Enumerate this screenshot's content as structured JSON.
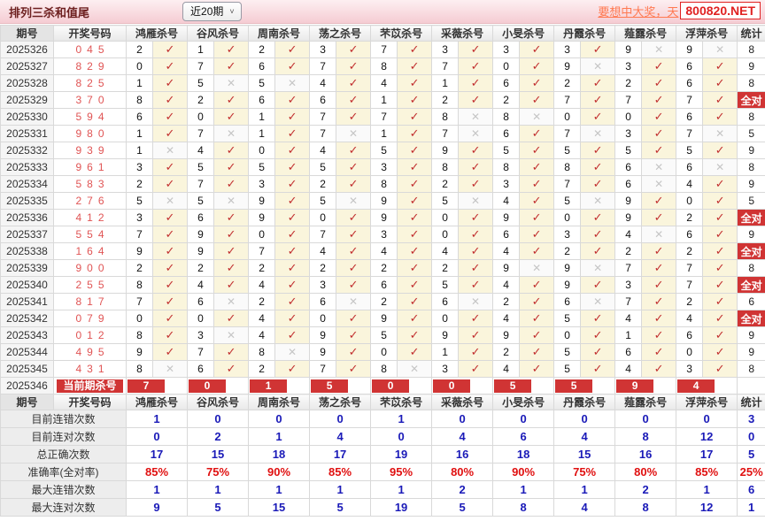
{
  "title": "排列三杀和值尾",
  "range_select": {
    "value": "近20期",
    "arrow": "˅"
  },
  "promo": {
    "link_text": "要想中大奖，天",
    "site": "800820.NET"
  },
  "columns": {
    "period": "期号",
    "numbers": "开奖号码",
    "stat": "统计"
  },
  "experts": [
    "鸿雁杀号",
    "谷风杀号",
    "周南杀号",
    "荡之杀号",
    "芣苡杀号",
    "采薇杀号",
    "小旻杀号",
    "丹霞杀号",
    "薤露杀号",
    "浮萍杀号"
  ],
  "icons": {
    "check": "✓",
    "cross": "✕"
  },
  "badges": {
    "all_correct": "全对",
    "current_label": "当前期杀号"
  },
  "colors": {
    "accent_red": "#d03434",
    "check": "#c23030",
    "cross": "#c6c6c6",
    "value_blue": "#1a1ab8",
    "value_red": "#e01010",
    "draw_red": "#e05454"
  },
  "rows": [
    {
      "period": "2025326",
      "numbers": "045",
      "kills": [
        [
          "2",
          1
        ],
        [
          "1",
          1
        ],
        [
          "2",
          1
        ],
        [
          "3",
          1
        ],
        [
          "7",
          1
        ],
        [
          "3",
          1
        ],
        [
          "3",
          1
        ],
        [
          "3",
          1
        ],
        [
          "9",
          0
        ],
        [
          "9",
          0
        ]
      ],
      "stat": "8",
      "all_correct": false
    },
    {
      "period": "2025327",
      "numbers": "829",
      "kills": [
        [
          "0",
          1
        ],
        [
          "7",
          1
        ],
        [
          "6",
          1
        ],
        [
          "7",
          1
        ],
        [
          "8",
          1
        ],
        [
          "7",
          1
        ],
        [
          "0",
          1
        ],
        [
          "9",
          0
        ],
        [
          "3",
          1
        ],
        [
          "6",
          1
        ]
      ],
      "stat": "9",
      "all_correct": false
    },
    {
      "period": "2025328",
      "numbers": "825",
      "kills": [
        [
          "1",
          1
        ],
        [
          "5",
          0
        ],
        [
          "5",
          0
        ],
        [
          "4",
          1
        ],
        [
          "4",
          1
        ],
        [
          "1",
          1
        ],
        [
          "6",
          1
        ],
        [
          "2",
          1
        ],
        [
          "2",
          1
        ],
        [
          "6",
          1
        ]
      ],
      "stat": "8",
      "all_correct": false
    },
    {
      "period": "2025329",
      "numbers": "370",
      "kills": [
        [
          "8",
          1
        ],
        [
          "2",
          1
        ],
        [
          "6",
          1
        ],
        [
          "6",
          1
        ],
        [
          "1",
          1
        ],
        [
          "2",
          1
        ],
        [
          "2",
          1
        ],
        [
          "7",
          1
        ],
        [
          "7",
          1
        ],
        [
          "7",
          1
        ]
      ],
      "stat": "",
      "all_correct": true
    },
    {
      "period": "2025330",
      "numbers": "594",
      "kills": [
        [
          "6",
          1
        ],
        [
          "0",
          1
        ],
        [
          "1",
          1
        ],
        [
          "7",
          1
        ],
        [
          "7",
          1
        ],
        [
          "8",
          0
        ],
        [
          "8",
          0
        ],
        [
          "0",
          1
        ],
        [
          "0",
          1
        ],
        [
          "6",
          1
        ]
      ],
      "stat": "8",
      "all_correct": false
    },
    {
      "period": "2025331",
      "numbers": "980",
      "kills": [
        [
          "1",
          1
        ],
        [
          "7",
          0
        ],
        [
          "1",
          1
        ],
        [
          "7",
          0
        ],
        [
          "1",
          1
        ],
        [
          "7",
          0
        ],
        [
          "6",
          1
        ],
        [
          "7",
          0
        ],
        [
          "3",
          1
        ],
        [
          "7",
          0
        ]
      ],
      "stat": "5",
      "all_correct": false
    },
    {
      "period": "2025332",
      "numbers": "939",
      "kills": [
        [
          "1",
          0
        ],
        [
          "4",
          1
        ],
        [
          "0",
          1
        ],
        [
          "4",
          1
        ],
        [
          "5",
          1
        ],
        [
          "9",
          1
        ],
        [
          "5",
          1
        ],
        [
          "5",
          1
        ],
        [
          "5",
          1
        ],
        [
          "5",
          1
        ]
      ],
      "stat": "9",
      "all_correct": false
    },
    {
      "period": "2025333",
      "numbers": "961",
      "kills": [
        [
          "3",
          1
        ],
        [
          "5",
          1
        ],
        [
          "5",
          1
        ],
        [
          "5",
          1
        ],
        [
          "3",
          1
        ],
        [
          "8",
          1
        ],
        [
          "8",
          1
        ],
        [
          "8",
          1
        ],
        [
          "6",
          0
        ],
        [
          "6",
          0
        ]
      ],
      "stat": "8",
      "all_correct": false
    },
    {
      "period": "2025334",
      "numbers": "583",
      "kills": [
        [
          "2",
          1
        ],
        [
          "7",
          1
        ],
        [
          "3",
          1
        ],
        [
          "2",
          1
        ],
        [
          "8",
          1
        ],
        [
          "2",
          1
        ],
        [
          "3",
          1
        ],
        [
          "7",
          1
        ],
        [
          "6",
          0
        ],
        [
          "4",
          1
        ]
      ],
      "stat": "9",
      "all_correct": false
    },
    {
      "period": "2025335",
      "numbers": "276",
      "kills": [
        [
          "5",
          0
        ],
        [
          "5",
          0
        ],
        [
          "9",
          1
        ],
        [
          "5",
          0
        ],
        [
          "9",
          1
        ],
        [
          "5",
          0
        ],
        [
          "4",
          1
        ],
        [
          "5",
          0
        ],
        [
          "9",
          1
        ],
        [
          "0",
          1
        ]
      ],
      "stat": "5",
      "all_correct": false
    },
    {
      "period": "2025336",
      "numbers": "412",
      "kills": [
        [
          "3",
          1
        ],
        [
          "6",
          1
        ],
        [
          "9",
          1
        ],
        [
          "0",
          1
        ],
        [
          "9",
          1
        ],
        [
          "0",
          1
        ],
        [
          "9",
          1
        ],
        [
          "0",
          1
        ],
        [
          "9",
          1
        ],
        [
          "2",
          1
        ]
      ],
      "stat": "",
      "all_correct": true
    },
    {
      "period": "2025337",
      "numbers": "554",
      "kills": [
        [
          "7",
          1
        ],
        [
          "9",
          1
        ],
        [
          "0",
          1
        ],
        [
          "7",
          1
        ],
        [
          "3",
          1
        ],
        [
          "0",
          1
        ],
        [
          "6",
          1
        ],
        [
          "3",
          1
        ],
        [
          "4",
          0
        ],
        [
          "6",
          1
        ]
      ],
      "stat": "9",
      "all_correct": false
    },
    {
      "period": "2025338",
      "numbers": "164",
      "kills": [
        [
          "9",
          1
        ],
        [
          "9",
          1
        ],
        [
          "7",
          1
        ],
        [
          "4",
          1
        ],
        [
          "4",
          1
        ],
        [
          "4",
          1
        ],
        [
          "4",
          1
        ],
        [
          "2",
          1
        ],
        [
          "2",
          1
        ],
        [
          "2",
          1
        ]
      ],
      "stat": "",
      "all_correct": true
    },
    {
      "period": "2025339",
      "numbers": "900",
      "kills": [
        [
          "2",
          1
        ],
        [
          "2",
          1
        ],
        [
          "2",
          1
        ],
        [
          "2",
          1
        ],
        [
          "2",
          1
        ],
        [
          "2",
          1
        ],
        [
          "9",
          0
        ],
        [
          "9",
          0
        ],
        [
          "7",
          1
        ],
        [
          "7",
          1
        ]
      ],
      "stat": "8",
      "all_correct": false
    },
    {
      "period": "2025340",
      "numbers": "255",
      "kills": [
        [
          "8",
          1
        ],
        [
          "4",
          1
        ],
        [
          "4",
          1
        ],
        [
          "3",
          1
        ],
        [
          "6",
          1
        ],
        [
          "5",
          1
        ],
        [
          "4",
          1
        ],
        [
          "9",
          1
        ],
        [
          "3",
          1
        ],
        [
          "7",
          1
        ]
      ],
      "stat": "",
      "all_correct": true
    },
    {
      "period": "2025341",
      "numbers": "817",
      "kills": [
        [
          "7",
          1
        ],
        [
          "6",
          0
        ],
        [
          "2",
          1
        ],
        [
          "6",
          0
        ],
        [
          "2",
          1
        ],
        [
          "6",
          0
        ],
        [
          "2",
          1
        ],
        [
          "6",
          0
        ],
        [
          "7",
          1
        ],
        [
          "2",
          1
        ]
      ],
      "stat": "6",
      "all_correct": false
    },
    {
      "period": "2025342",
      "numbers": "079",
      "kills": [
        [
          "0",
          1
        ],
        [
          "0",
          1
        ],
        [
          "4",
          1
        ],
        [
          "0",
          1
        ],
        [
          "9",
          1
        ],
        [
          "0",
          1
        ],
        [
          "4",
          1
        ],
        [
          "5",
          1
        ],
        [
          "4",
          1
        ],
        [
          "4",
          1
        ]
      ],
      "stat": "",
      "all_correct": true
    },
    {
      "period": "2025343",
      "numbers": "012",
      "kills": [
        [
          "8",
          1
        ],
        [
          "3",
          0
        ],
        [
          "4",
          1
        ],
        [
          "9",
          1
        ],
        [
          "5",
          1
        ],
        [
          "9",
          1
        ],
        [
          "9",
          1
        ],
        [
          "0",
          1
        ],
        [
          "1",
          1
        ],
        [
          "6",
          1
        ]
      ],
      "stat": "9",
      "all_correct": false
    },
    {
      "period": "2025344",
      "numbers": "495",
      "kills": [
        [
          "9",
          1
        ],
        [
          "7",
          1
        ],
        [
          "8",
          0
        ],
        [
          "9",
          1
        ],
        [
          "0",
          1
        ],
        [
          "1",
          1
        ],
        [
          "2",
          1
        ],
        [
          "5",
          1
        ],
        [
          "6",
          1
        ],
        [
          "0",
          1
        ]
      ],
      "stat": "9",
      "all_correct": false
    },
    {
      "period": "2025345",
      "numbers": "431",
      "kills": [
        [
          "8",
          0
        ],
        [
          "6",
          1
        ],
        [
          "2",
          1
        ],
        [
          "7",
          1
        ],
        [
          "8",
          0
        ],
        [
          "3",
          1
        ],
        [
          "4",
          1
        ],
        [
          "5",
          1
        ],
        [
          "4",
          1
        ],
        [
          "3",
          1
        ]
      ],
      "stat": "8",
      "all_correct": false
    }
  ],
  "current_row": {
    "period": "2025346",
    "kills": [
      "7",
      "0",
      "1",
      "5",
      "0",
      "0",
      "5",
      "5",
      "9",
      "4"
    ]
  },
  "summary_rows": [
    {
      "label": "目前连错次数",
      "values": [
        "1",
        "0",
        "0",
        "0",
        "1",
        "0",
        "0",
        "0",
        "0",
        "0"
      ],
      "stat": "3",
      "pct": false
    },
    {
      "label": "目前连对次数",
      "values": [
        "0",
        "2",
        "1",
        "4",
        "0",
        "4",
        "6",
        "4",
        "8",
        "12"
      ],
      "stat": "0",
      "pct": false
    },
    {
      "label": "总正确次数",
      "values": [
        "17",
        "15",
        "18",
        "17",
        "19",
        "16",
        "18",
        "15",
        "16",
        "17"
      ],
      "stat": "5",
      "pct": false
    },
    {
      "label": "准确率(全对率)",
      "values": [
        "85%",
        "75%",
        "90%",
        "85%",
        "95%",
        "80%",
        "90%",
        "75%",
        "80%",
        "85%"
      ],
      "stat": "25%",
      "pct": true
    },
    {
      "label": "最大连错次数",
      "values": [
        "1",
        "1",
        "1",
        "1",
        "1",
        "2",
        "1",
        "1",
        "2",
        "1"
      ],
      "stat": "6",
      "pct": false
    },
    {
      "label": "最大连对次数",
      "values": [
        "9",
        "5",
        "15",
        "5",
        "19",
        "5",
        "8",
        "4",
        "8",
        "12"
      ],
      "stat": "1",
      "pct": false
    }
  ]
}
